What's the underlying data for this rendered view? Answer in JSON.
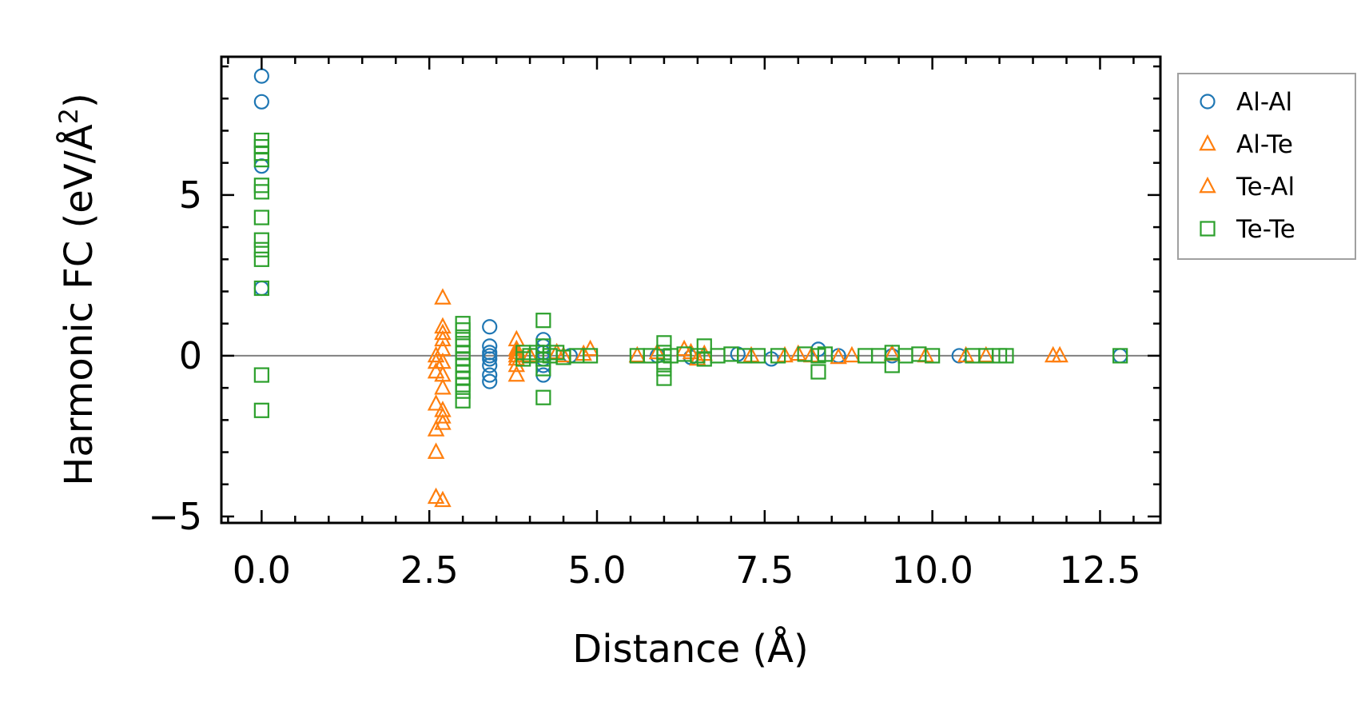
{
  "chart_data": {
    "type": "scatter",
    "title": "",
    "xlabel": "Distance (Å)",
    "ylabel": "Harmonic FC (eV/Å²)",
    "ylabel_parts": {
      "text": "Harmonic FC (eV/Å",
      "sup": "2",
      "close": ")"
    },
    "xlim": [
      -0.6,
      13.4
    ],
    "ylim": [
      -5.2,
      9.3
    ],
    "xticks": [
      0.0,
      2.5,
      5.0,
      7.5,
      10.0,
      12.5
    ],
    "xtick_labels": [
      "0.0",
      "2.5",
      "5.0",
      "7.5",
      "10.0",
      "12.5"
    ],
    "xminor_step": 0.5,
    "yticks": [
      -5,
      0,
      5
    ],
    "ytick_labels": [
      "−5",
      "0",
      "5"
    ],
    "yminor_step": 1,
    "zero_line": true,
    "legend_position": "outside-right-top",
    "series": [
      {
        "name": "Al-Al",
        "marker": "circle",
        "color": "#1f77b4",
        "points": [
          [
            0.0,
            8.7
          ],
          [
            0.0,
            7.9
          ],
          [
            0.0,
            5.9
          ],
          [
            0.0,
            2.1
          ],
          [
            3.4,
            0.9
          ],
          [
            3.4,
            0.3
          ],
          [
            3.4,
            0.1
          ],
          [
            3.4,
            0.0
          ],
          [
            3.4,
            -0.1
          ],
          [
            3.4,
            -0.3
          ],
          [
            3.4,
            -0.6
          ],
          [
            3.4,
            -0.8
          ],
          [
            4.2,
            0.5
          ],
          [
            4.2,
            0.3
          ],
          [
            4.2,
            0.1
          ],
          [
            4.2,
            -0.1
          ],
          [
            4.2,
            -0.3
          ],
          [
            4.2,
            -0.6
          ],
          [
            4.6,
            0.0
          ],
          [
            5.9,
            0.0
          ],
          [
            6.4,
            -0.05
          ],
          [
            7.1,
            0.05
          ],
          [
            7.6,
            -0.1
          ],
          [
            8.3,
            0.2
          ],
          [
            8.6,
            0.0
          ],
          [
            9.4,
            0.0
          ],
          [
            10.4,
            0.0
          ],
          [
            12.8,
            0.0
          ]
        ]
      },
      {
        "name": "Al-Te",
        "marker": "triangle",
        "color": "#ff7f0e",
        "points": [
          [
            2.6,
            0.0
          ],
          [
            2.6,
            -0.5
          ],
          [
            2.6,
            -2.3
          ],
          [
            2.6,
            -3.0
          ],
          [
            2.6,
            -4.4
          ],
          [
            2.7,
            1.8
          ],
          [
            2.7,
            0.9
          ],
          [
            2.7,
            0.5
          ],
          [
            2.7,
            0.2
          ],
          [
            2.7,
            -0.2
          ],
          [
            2.7,
            -0.6
          ],
          [
            2.7,
            -1.7
          ],
          [
            2.7,
            -2.1
          ],
          [
            2.7,
            -4.5
          ],
          [
            3.8,
            0.5
          ],
          [
            3.8,
            0.2
          ],
          [
            3.8,
            0.0
          ],
          [
            3.8,
            -0.3
          ],
          [
            3.8,
            -0.6
          ],
          [
            4.4,
            0.1
          ],
          [
            4.9,
            0.2
          ],
          [
            5.6,
            0.0
          ],
          [
            6.3,
            0.2
          ],
          [
            6.4,
            0.1
          ],
          [
            6.5,
            -0.1
          ],
          [
            7.8,
            0.0
          ],
          [
            8.2,
            0.0
          ],
          [
            8.6,
            -0.05
          ],
          [
            9.9,
            0.0
          ],
          [
            10.8,
            0.0
          ],
          [
            11.8,
            0.0
          ]
        ]
      },
      {
        "name": "Te-Al",
        "marker": "triangle",
        "color": "#ff7f0e",
        "points": [
          [
            2.6,
            -1.5
          ],
          [
            2.6,
            -0.2
          ],
          [
            2.7,
            0.7
          ],
          [
            2.7,
            -1.0
          ],
          [
            2.7,
            -1.9
          ],
          [
            3.8,
            0.1
          ],
          [
            3.8,
            -0.1
          ],
          [
            4.0,
            0.0
          ],
          [
            4.5,
            0.0
          ],
          [
            4.8,
            0.05
          ],
          [
            5.9,
            0.1
          ],
          [
            6.6,
            0.05
          ],
          [
            7.3,
            0.0
          ],
          [
            8.0,
            0.05
          ],
          [
            8.8,
            0.0
          ],
          [
            9.4,
            0.05
          ],
          [
            10.5,
            0.0
          ],
          [
            11.9,
            0.0
          ]
        ]
      },
      {
        "name": "Te-Te",
        "marker": "square",
        "color": "#2ca02c",
        "points": [
          [
            0.0,
            6.7
          ],
          [
            0.0,
            6.5
          ],
          [
            0.0,
            6.3
          ],
          [
            0.0,
            6.1
          ],
          [
            0.0,
            5.3
          ],
          [
            0.0,
            5.1
          ],
          [
            0.0,
            4.3
          ],
          [
            0.0,
            3.6
          ],
          [
            0.0,
            3.3
          ],
          [
            0.0,
            3.0
          ],
          [
            0.0,
            2.1
          ],
          [
            0.0,
            -0.6
          ],
          [
            0.0,
            -1.7
          ],
          [
            3.0,
            1.0
          ],
          [
            3.0,
            0.8
          ],
          [
            3.0,
            0.5
          ],
          [
            3.0,
            0.3
          ],
          [
            3.0,
            0.1
          ],
          [
            3.0,
            -0.1
          ],
          [
            3.0,
            -0.3
          ],
          [
            3.0,
            -0.5
          ],
          [
            3.0,
            -0.7
          ],
          [
            3.0,
            -0.9
          ],
          [
            3.0,
            -1.1
          ],
          [
            3.0,
            -1.4
          ],
          [
            3.9,
            0.1
          ],
          [
            3.9,
            -0.1
          ],
          [
            4.0,
            0.0
          ],
          [
            4.1,
            0.1
          ],
          [
            4.2,
            1.1
          ],
          [
            4.2,
            0.3
          ],
          [
            4.2,
            0.1
          ],
          [
            4.2,
            -0.1
          ],
          [
            4.2,
            -0.4
          ],
          [
            4.2,
            -1.3
          ],
          [
            4.3,
            0.0
          ],
          [
            4.4,
            0.1
          ],
          [
            4.5,
            -0.05
          ],
          [
            4.7,
            0.0
          ],
          [
            4.9,
            0.0
          ],
          [
            5.6,
            0.0
          ],
          [
            5.8,
            0.0
          ],
          [
            6.0,
            0.4
          ],
          [
            6.0,
            0.1
          ],
          [
            6.0,
            -0.2
          ],
          [
            6.0,
            -0.4
          ],
          [
            6.0,
            -0.7
          ],
          [
            6.1,
            0.0
          ],
          [
            6.3,
            0.05
          ],
          [
            6.5,
            0.0
          ],
          [
            6.6,
            0.3
          ],
          [
            6.6,
            -0.1
          ],
          [
            6.8,
            0.0
          ],
          [
            7.0,
            0.05
          ],
          [
            7.2,
            0.0
          ],
          [
            7.4,
            0.0
          ],
          [
            7.7,
            0.0
          ],
          [
            8.1,
            0.05
          ],
          [
            8.3,
            0.0
          ],
          [
            8.3,
            -0.5
          ],
          [
            8.4,
            0.05
          ],
          [
            9.0,
            0.0
          ],
          [
            9.2,
            0.0
          ],
          [
            9.4,
            0.1
          ],
          [
            9.4,
            -0.3
          ],
          [
            9.6,
            0.0
          ],
          [
            9.8,
            0.05
          ],
          [
            10.0,
            0.0
          ],
          [
            10.6,
            0.0
          ],
          [
            10.8,
            0.0
          ],
          [
            11.0,
            0.0
          ],
          [
            11.1,
            0.0
          ],
          [
            12.8,
            0.0
          ]
        ]
      }
    ]
  },
  "colors": {
    "zero_line": "#808080",
    "legend_border": "#a0a0a0",
    "axes": "#000000"
  }
}
